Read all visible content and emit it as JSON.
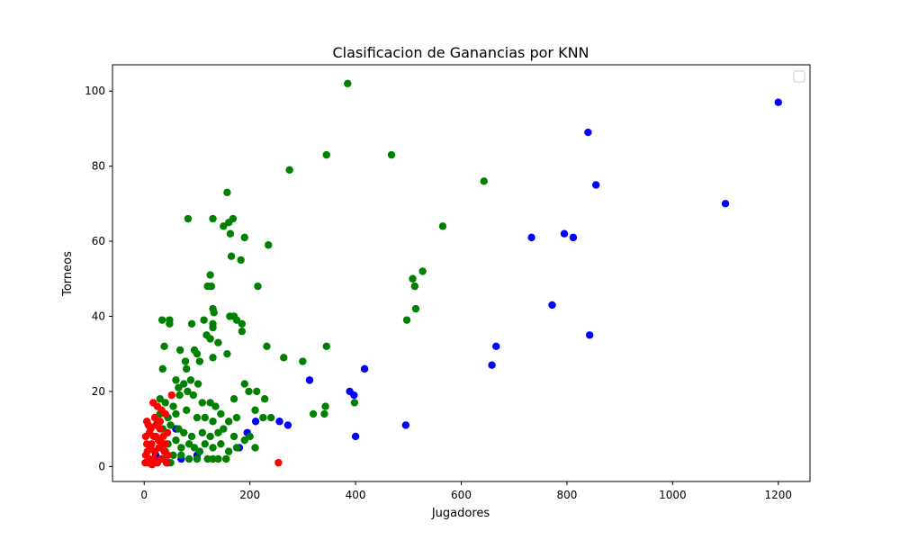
{
  "chart_data": {
    "type": "scatter",
    "title": "Clasificacion de Ganancias por KNN",
    "xlabel": "Jugadores",
    "ylabel": "Torneos",
    "xlim": [
      -60,
      1260
    ],
    "ylim": [
      -4,
      107
    ],
    "x_ticks": [
      0,
      200,
      400,
      600,
      800,
      1000,
      1200
    ],
    "y_ticks": [
      0,
      20,
      40,
      60,
      80,
      100
    ],
    "grid": false,
    "legend": {
      "placement": "top-right",
      "entries": []
    },
    "colors": {
      "blue": "#0000ff",
      "green": "#008000",
      "red": "#ff0000"
    },
    "series": [
      {
        "color": "#0000ff",
        "points": [
          [
            1200,
            97
          ],
          [
            840,
            89
          ],
          [
            855,
            75
          ],
          [
            1100,
            70
          ],
          [
            795,
            62
          ],
          [
            812,
            61
          ],
          [
            733,
            61
          ],
          [
            772,
            43
          ],
          [
            843,
            35
          ],
          [
            666,
            32
          ],
          [
            658,
            27
          ],
          [
            417,
            26
          ],
          [
            313,
            23
          ],
          [
            389,
            20
          ],
          [
            397,
            19
          ],
          [
            495,
            11
          ],
          [
            400,
            8
          ],
          [
            211,
            12
          ],
          [
            256,
            12
          ],
          [
            272,
            11
          ],
          [
            195,
            9
          ],
          [
            180,
            5
          ],
          [
            60,
            10
          ],
          [
            100,
            3
          ],
          [
            45,
            1
          ],
          [
            22,
            3
          ],
          [
            70,
            2
          ]
        ]
      },
      {
        "color": "#008000",
        "points": [
          [
            385,
            102
          ],
          [
            275,
            79
          ],
          [
            345,
            83
          ],
          [
            468,
            83
          ],
          [
            643,
            76
          ],
          [
            565,
            64
          ],
          [
            157,
            73
          ],
          [
            168,
            66
          ],
          [
            160,
            65
          ],
          [
            150,
            64
          ],
          [
            130,
            66
          ],
          [
            83,
            66
          ],
          [
            190,
            61
          ],
          [
            235,
            59
          ],
          [
            163,
            62
          ],
          [
            165,
            56
          ],
          [
            183,
            55
          ],
          [
            527,
            52
          ],
          [
            508,
            50
          ],
          [
            512,
            48
          ],
          [
            125,
            51
          ],
          [
            120,
            48
          ],
          [
            127,
            48
          ],
          [
            215,
            48
          ],
          [
            514,
            42
          ],
          [
            497,
            39
          ],
          [
            130,
            42
          ],
          [
            132,
            41
          ],
          [
            113,
            39
          ],
          [
            130,
            38
          ],
          [
            90,
            38
          ],
          [
            48,
            39
          ],
          [
            34,
            39
          ],
          [
            48,
            38
          ],
          [
            162,
            40
          ],
          [
            170,
            40
          ],
          [
            175,
            39
          ],
          [
            185,
            38
          ],
          [
            185,
            36
          ],
          [
            130,
            37
          ],
          [
            118,
            35
          ],
          [
            125,
            34
          ],
          [
            140,
            33
          ],
          [
            38,
            32
          ],
          [
            95,
            31
          ],
          [
            68,
            31
          ],
          [
            100,
            30
          ],
          [
            157,
            30
          ],
          [
            232,
            32
          ],
          [
            345,
            32
          ],
          [
            78,
            28
          ],
          [
            105,
            28
          ],
          [
            130,
            29
          ],
          [
            300,
            28
          ],
          [
            264,
            29
          ],
          [
            80,
            26
          ],
          [
            35,
            26
          ],
          [
            60,
            23
          ],
          [
            75,
            22
          ],
          [
            88,
            23
          ],
          [
            102,
            22
          ],
          [
            190,
            22
          ],
          [
            65,
            21
          ],
          [
            82,
            20
          ],
          [
            198,
            20
          ],
          [
            213,
            20
          ],
          [
            170,
            18
          ],
          [
            228,
            18
          ],
          [
            67,
            19
          ],
          [
            93,
            19
          ],
          [
            30,
            18
          ],
          [
            40,
            17
          ],
          [
            55,
            16
          ],
          [
            110,
            17
          ],
          [
            125,
            17
          ],
          [
            135,
            16
          ],
          [
            343,
            16
          ],
          [
            341,
            14
          ],
          [
            320,
            14
          ],
          [
            398,
            17
          ],
          [
            30,
            14
          ],
          [
            45,
            13
          ],
          [
            60,
            14
          ],
          [
            80,
            15
          ],
          [
            100,
            13
          ],
          [
            115,
            13
          ],
          [
            130,
            12
          ],
          [
            145,
            14
          ],
          [
            160,
            12
          ],
          [
            175,
            13
          ],
          [
            210,
            15
          ],
          [
            225,
            13
          ],
          [
            240,
            13
          ],
          [
            25,
            12
          ],
          [
            35,
            10
          ],
          [
            50,
            11
          ],
          [
            65,
            10
          ],
          [
            75,
            9
          ],
          [
            90,
            8
          ],
          [
            110,
            9
          ],
          [
            125,
            8
          ],
          [
            140,
            9
          ],
          [
            150,
            10
          ],
          [
            170,
            8
          ],
          [
            190,
            7
          ],
          [
            200,
            8
          ],
          [
            30,
            7
          ],
          [
            45,
            6
          ],
          [
            60,
            7
          ],
          [
            70,
            5
          ],
          [
            85,
            6
          ],
          [
            95,
            5
          ],
          [
            105,
            4
          ],
          [
            115,
            6
          ],
          [
            130,
            5
          ],
          [
            145,
            6
          ],
          [
            160,
            4
          ],
          [
            175,
            5
          ],
          [
            210,
            5
          ],
          [
            40,
            4
          ],
          [
            55,
            3
          ],
          [
            70,
            3
          ],
          [
            85,
            2
          ],
          [
            100,
            2
          ],
          [
            120,
            2
          ],
          [
            130,
            2
          ],
          [
            140,
            2
          ],
          [
            155,
            2
          ],
          [
            35,
            2
          ],
          [
            50,
            1
          ]
        ]
      },
      {
        "color": "#ff0000",
        "points": [
          [
            52,
            19
          ],
          [
            17,
            17
          ],
          [
            25,
            16
          ],
          [
            33,
            15
          ],
          [
            40,
            14
          ],
          [
            5,
            12
          ],
          [
            22,
            11
          ],
          [
            30,
            10
          ],
          [
            10,
            9
          ],
          [
            18,
            8
          ],
          [
            27,
            7
          ],
          [
            35,
            6
          ],
          [
            5,
            6
          ],
          [
            12,
            5
          ],
          [
            20,
            4
          ],
          [
            28,
            5
          ],
          [
            38,
            4
          ],
          [
            45,
            3
          ],
          [
            3,
            3
          ],
          [
            10,
            2
          ],
          [
            18,
            2
          ],
          [
            25,
            1
          ],
          [
            32,
            2
          ],
          [
            2,
            1
          ],
          [
            8,
            1
          ],
          [
            15,
            0.5
          ],
          [
            42,
            1
          ],
          [
            254,
            1
          ],
          [
            6,
            4
          ],
          [
            14,
            6
          ],
          [
            22,
            8
          ],
          [
            30,
            12
          ],
          [
            8,
            11
          ],
          [
            36,
            8
          ],
          [
            44,
            9
          ],
          [
            20,
            13
          ],
          [
            12,
            10
          ],
          [
            40,
            6
          ],
          [
            3,
            8
          ]
        ]
      }
    ]
  }
}
